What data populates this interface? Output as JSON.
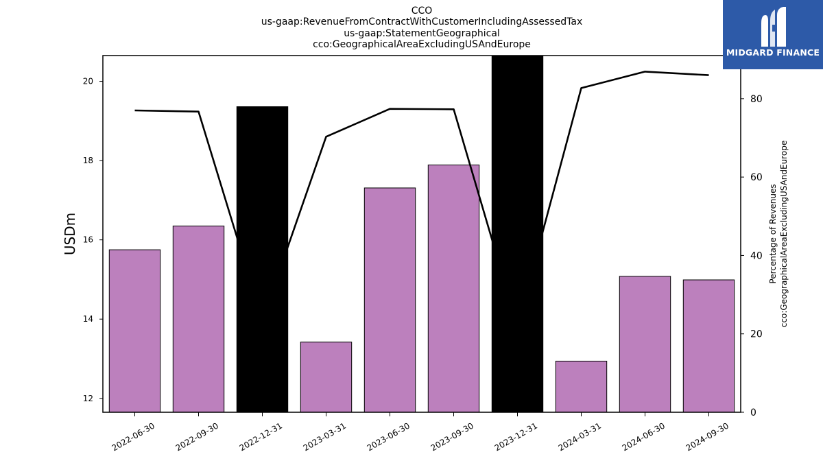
{
  "brand": {
    "name": "MIDGARD FINANCE",
    "logo_icon": "midgard-m-icon",
    "background_color": "#2d5aa8"
  },
  "chart_data": {
    "type": "bar",
    "title_lines": [
      "CCO",
      "us-gaap:RevenueFromContractWithCustomerIncludingAssessedTax",
      "us-gaap:StatementGeographical",
      "cco:GeographicalAreaExcludingUSAndEurope"
    ],
    "ylabel": "USDm",
    "y2label_lines": [
      "Percentage of Revenues",
      "cco:GeographicalAreaExcludingUSAndEurope"
    ],
    "categories": [
      "2022-06-30",
      "2022-09-30",
      "2022-12-31",
      "2023-03-31",
      "2023-06-30",
      "2023-09-30",
      "2023-12-31",
      "2024-03-31",
      "2024-06-30",
      "2024-09-30"
    ],
    "series": [
      {
        "type": "bar",
        "values": [
          15.75,
          16.35,
          19.36,
          13.42,
          17.31,
          17.89,
          20.8,
          12.94,
          15.08,
          14.99
        ],
        "colors": [
          "#bc80bd",
          "#bc80bd",
          "#000000",
          "#bc80bd",
          "#bc80bd",
          "#bc80bd",
          "#000000",
          "#bc80bd",
          "#bc80bd",
          "#bc80bd"
        ]
      },
      {
        "type": "line",
        "axis": "right",
        "color": "#000000",
        "values": [
          77.0,
          76.7,
          23.5,
          70.3,
          77.4,
          77.3,
          22.0,
          82.7,
          86.9,
          86.0
        ]
      }
    ],
    "ylim": [
      11.65,
      20.65
    ],
    "yticks": [
      12,
      14,
      16,
      18,
      20
    ],
    "y2lim": [
      0,
      91
    ],
    "y2ticks": [
      0,
      20,
      40,
      60,
      80
    ],
    "grid": false
  }
}
